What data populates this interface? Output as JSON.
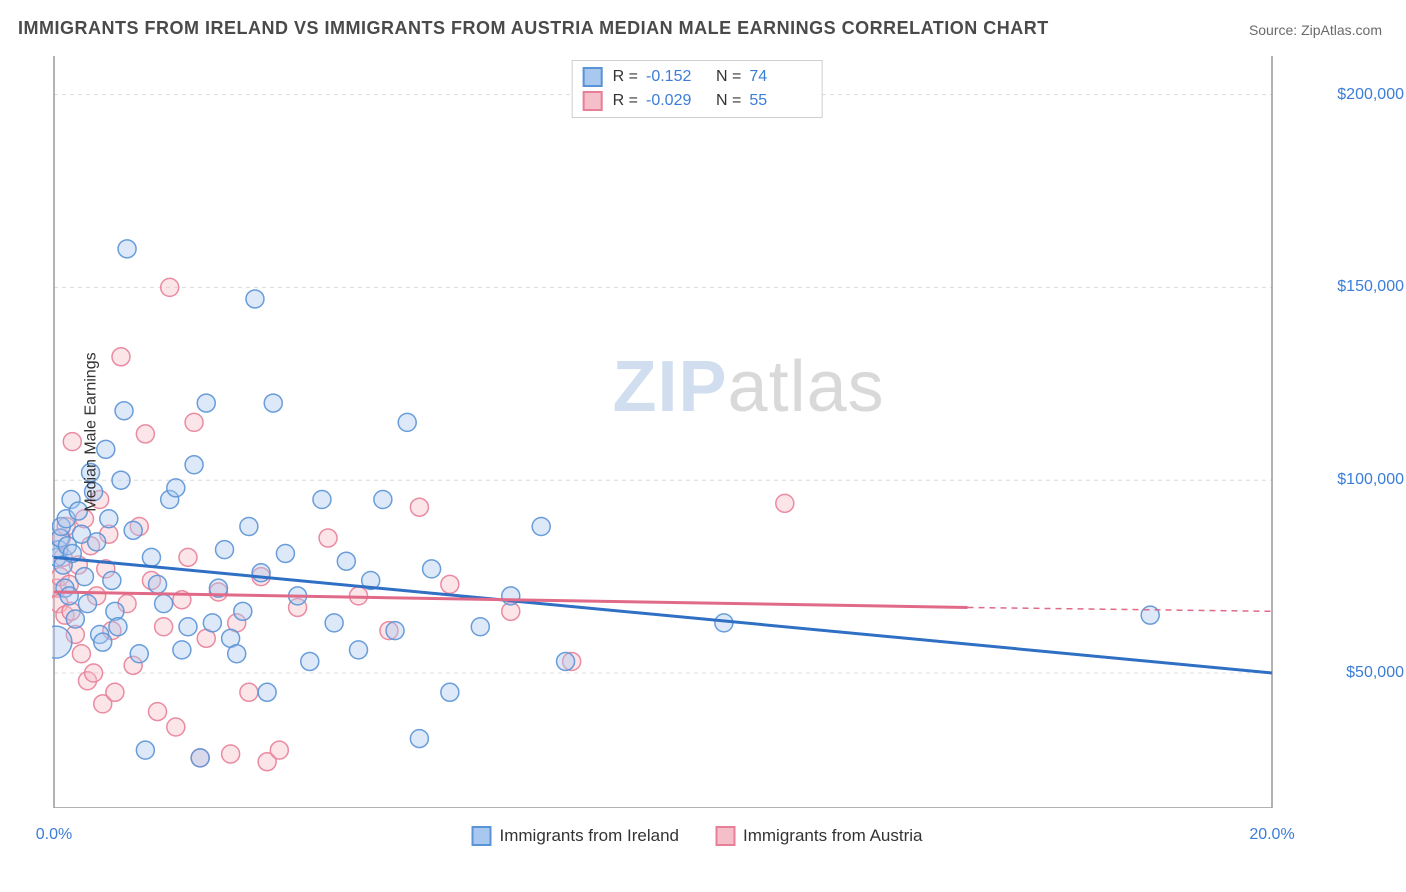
{
  "title": "IMMIGRANTS FROM IRELAND VS IMMIGRANTS FROM AUSTRIA MEDIAN MALE EARNINGS CORRELATION CHART",
  "source_prefix": "Source: ",
  "source_name": "ZipAtlas.com",
  "watermark": {
    "part1": "ZIP",
    "part2": "atlas"
  },
  "chart": {
    "type": "scatter",
    "background_color": "#ffffff",
    "grid_color": "#dcdcdc",
    "axis_color": "#9a9a9a",
    "tick_color": "#bdbdbd",
    "xlim": [
      0,
      20
    ],
    "ylim": [
      15000,
      210000
    ],
    "y_gridlines": [
      50000,
      100000,
      150000,
      200000
    ],
    "x_ticks_minor": [
      0,
      1,
      2,
      3,
      4,
      5,
      6,
      7,
      8,
      9,
      10,
      11,
      12,
      13,
      14,
      15,
      16,
      17,
      18,
      19,
      20
    ],
    "y_axis_label": "Median Male Earnings",
    "y_tick_labels": [
      {
        "v": 50000,
        "text": "$50,000"
      },
      {
        "v": 100000,
        "text": "$100,000"
      },
      {
        "v": 150000,
        "text": "$150,000"
      },
      {
        "v": 200000,
        "text": "$200,000"
      }
    ],
    "x_tick_labels": [
      {
        "v": 0,
        "text": "0.0%"
      },
      {
        "v": 20,
        "text": "20.0%"
      }
    ],
    "marker_radius": 9,
    "big_marker_radius": 16,
    "fill_opacity": 0.4,
    "stroke_opacity": 0.9,
    "line_width": 3,
    "series": [
      {
        "id": "ireland",
        "label": "Immigrants from Ireland",
        "color_fill": "#a9c8ef",
        "color_stroke": "#5a93d6",
        "line_color": "#2f6fc4",
        "R": "-0.152",
        "N": "74",
        "trend": {
          "x1": 0,
          "y1": 80000,
          "x2": 20,
          "y2": 50000,
          "dash_from_x": 20
        },
        "points": [
          [
            0.05,
            80000
          ],
          [
            0.08,
            82000
          ],
          [
            0.1,
            85000
          ],
          [
            0.12,
            88000
          ],
          [
            0.15,
            78000
          ],
          [
            0.18,
            72000
          ],
          [
            0.2,
            90000
          ],
          [
            0.22,
            83000
          ],
          [
            0.25,
            70000
          ],
          [
            0.28,
            95000
          ],
          [
            0.3,
            81000
          ],
          [
            0.35,
            64000
          ],
          [
            0.4,
            92000
          ],
          [
            0.45,
            86000
          ],
          [
            0.5,
            75000
          ],
          [
            0.55,
            68000
          ],
          [
            0.6,
            102000
          ],
          [
            0.65,
            97000
          ],
          [
            0.7,
            84000
          ],
          [
            0.75,
            60000
          ],
          [
            0.8,
            58000
          ],
          [
            0.85,
            108000
          ],
          [
            0.9,
            90000
          ],
          [
            0.95,
            74000
          ],
          [
            1.0,
            66000
          ],
          [
            1.05,
            62000
          ],
          [
            1.1,
            100000
          ],
          [
            1.15,
            118000
          ],
          [
            1.2,
            160000
          ],
          [
            1.3,
            87000
          ],
          [
            1.4,
            55000
          ],
          [
            1.5,
            30000
          ],
          [
            1.6,
            80000
          ],
          [
            1.7,
            73000
          ],
          [
            1.8,
            68000
          ],
          [
            1.9,
            95000
          ],
          [
            2.0,
            98000
          ],
          [
            2.1,
            56000
          ],
          [
            2.2,
            62000
          ],
          [
            2.3,
            104000
          ],
          [
            2.4,
            28000
          ],
          [
            2.5,
            120000
          ],
          [
            2.6,
            63000
          ],
          [
            2.7,
            72000
          ],
          [
            2.8,
            82000
          ],
          [
            2.9,
            59000
          ],
          [
            3.0,
            55000
          ],
          [
            3.1,
            66000
          ],
          [
            3.2,
            88000
          ],
          [
            3.3,
            147000
          ],
          [
            3.4,
            76000
          ],
          [
            3.5,
            45000
          ],
          [
            3.6,
            120000
          ],
          [
            3.8,
            81000
          ],
          [
            4.0,
            70000
          ],
          [
            4.2,
            53000
          ],
          [
            4.4,
            95000
          ],
          [
            4.6,
            63000
          ],
          [
            4.8,
            79000
          ],
          [
            5.0,
            56000
          ],
          [
            5.2,
            74000
          ],
          [
            5.4,
            95000
          ],
          [
            5.6,
            61000
          ],
          [
            5.8,
            115000
          ],
          [
            6.0,
            33000
          ],
          [
            6.2,
            77000
          ],
          [
            6.5,
            45000
          ],
          [
            7.0,
            62000
          ],
          [
            7.5,
            70000
          ],
          [
            8.0,
            88000
          ],
          [
            8.4,
            53000
          ],
          [
            11.0,
            63000
          ],
          [
            18.0,
            65000
          ]
        ],
        "big_point": [
          0.03,
          58000
        ]
      },
      {
        "id": "austria",
        "label": "Immigrants from Austria",
        "color_fill": "#f5bfc9",
        "color_stroke": "#e87f98",
        "line_color": "#e06a88",
        "R": "-0.029",
        "N": "55",
        "trend": {
          "x1": 0,
          "y1": 71000,
          "x2": 15,
          "y2": 67000,
          "dash_from_x": 15,
          "dash_to_x": 20,
          "dash_to_y": 66000
        },
        "points": [
          [
            0.05,
            72000
          ],
          [
            0.08,
            68000
          ],
          [
            0.1,
            75000
          ],
          [
            0.12,
            85000
          ],
          [
            0.15,
            80000
          ],
          [
            0.18,
            65000
          ],
          [
            0.2,
            88000
          ],
          [
            0.25,
            73000
          ],
          [
            0.28,
            66000
          ],
          [
            0.3,
            110000
          ],
          [
            0.35,
            60000
          ],
          [
            0.4,
            78000
          ],
          [
            0.45,
            55000
          ],
          [
            0.5,
            90000
          ],
          [
            0.55,
            48000
          ],
          [
            0.6,
            83000
          ],
          [
            0.65,
            50000
          ],
          [
            0.7,
            70000
          ],
          [
            0.75,
            95000
          ],
          [
            0.8,
            42000
          ],
          [
            0.85,
            77000
          ],
          [
            0.9,
            86000
          ],
          [
            0.95,
            61000
          ],
          [
            1.0,
            45000
          ],
          [
            1.1,
            132000
          ],
          [
            1.2,
            68000
          ],
          [
            1.3,
            52000
          ],
          [
            1.4,
            88000
          ],
          [
            1.5,
            112000
          ],
          [
            1.6,
            74000
          ],
          [
            1.7,
            40000
          ],
          [
            1.8,
            62000
          ],
          [
            1.9,
            150000
          ],
          [
            2.0,
            36000
          ],
          [
            2.1,
            69000
          ],
          [
            2.2,
            80000
          ],
          [
            2.3,
            115000
          ],
          [
            2.4,
            28000
          ],
          [
            2.5,
            59000
          ],
          [
            2.7,
            71000
          ],
          [
            2.9,
            29000
          ],
          [
            3.0,
            63000
          ],
          [
            3.2,
            45000
          ],
          [
            3.4,
            75000
          ],
          [
            3.5,
            27000
          ],
          [
            3.7,
            30000
          ],
          [
            4.0,
            67000
          ],
          [
            4.5,
            85000
          ],
          [
            5.0,
            70000
          ],
          [
            5.5,
            61000
          ],
          [
            6.0,
            93000
          ],
          [
            6.5,
            73000
          ],
          [
            7.5,
            66000
          ],
          [
            8.5,
            53000
          ],
          [
            12.0,
            94000
          ]
        ]
      }
    ]
  }
}
